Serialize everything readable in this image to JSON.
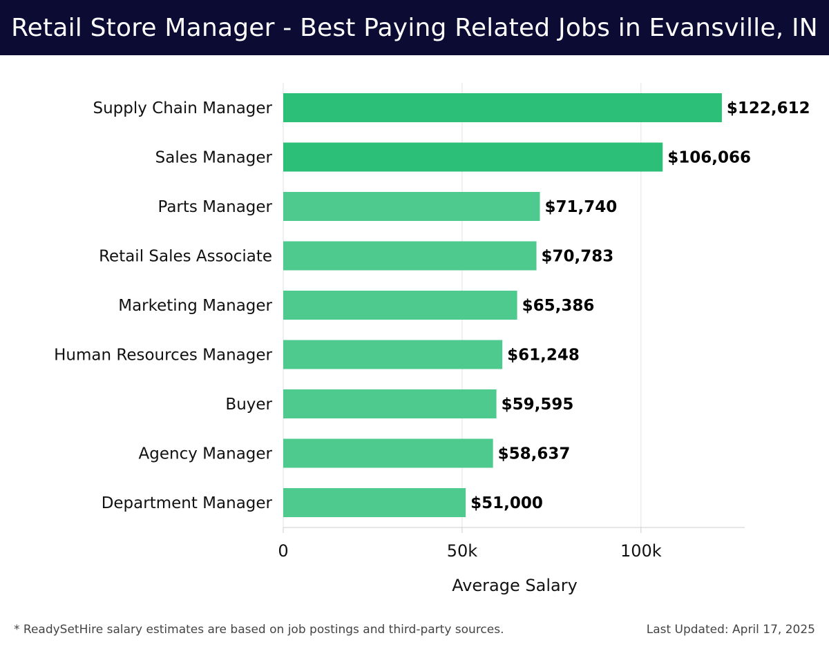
{
  "header": {
    "title": "Retail Store Manager - Best Paying Related Jobs in Evansville, IN"
  },
  "chart_data": {
    "type": "bar",
    "orientation": "horizontal",
    "categories": [
      "Supply Chain Manager",
      "Sales Manager",
      "Parts Manager",
      "Retail Sales Associate",
      "Marketing Manager",
      "Human Resources Manager",
      "Buyer",
      "Agency Manager",
      "Department Manager"
    ],
    "values": [
      122612,
      106066,
      71740,
      70783,
      65386,
      61248,
      59595,
      58637,
      51000
    ],
    "value_labels": [
      "$122,612",
      "$106,066",
      "$71,740",
      "$70,783",
      "$65,386",
      "$61,248",
      "$59,595",
      "$58,637",
      "$51,000"
    ],
    "xlabel": "Average Salary",
    "ylabel": "",
    "xticks": [
      0,
      50000,
      100000
    ],
    "xtick_labels": [
      "0",
      "50k",
      "100k"
    ],
    "xlim": [
      0,
      129000
    ],
    "grid": "vertical",
    "colors": {
      "top_bars": "#2bbf78",
      "other_bars": "#4fca8f",
      "grid": "#e2e2e2",
      "axis": "#cccccc"
    }
  },
  "footer": {
    "note": "* ReadySetHire salary estimates are based on job postings and third-party sources.",
    "updated": "Last Updated: April 17, 2025"
  }
}
